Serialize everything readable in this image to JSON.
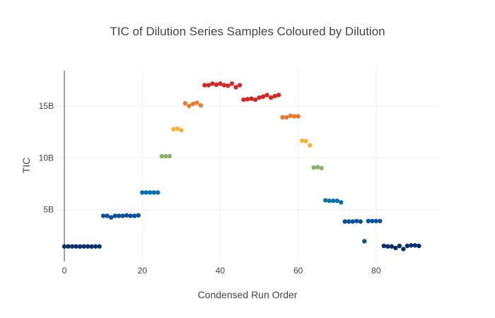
{
  "chart_data": {
    "type": "scatter",
    "title": "TIC of Dilution Series Samples Coloured by Dilution",
    "xlabel": "Condensed Run Order",
    "ylabel": "TIC",
    "xlim": [
      -2,
      96
    ],
    "ylim": [
      0,
      18400000000
    ],
    "x_ticks": [
      0,
      20,
      40,
      60,
      80
    ],
    "x_tick_labels": [
      "0",
      "20",
      "40",
      "60",
      "80"
    ],
    "y_ticks": [
      5000000000,
      10000000000,
      15000000000
    ],
    "y_tick_labels": [
      "5B",
      "10B",
      "15B"
    ],
    "grid": true,
    "legend": "none",
    "colors": {
      "navy": "#08306b",
      "darkblue": "#08519c",
      "blue": "#0570b0",
      "green": "#8fb26a",
      "yellow": "#f6b53a",
      "orange": "#ea7a32",
      "red": "#d62728"
    },
    "points": [
      {
        "x": 0,
        "y": 1450000000,
        "c": "navy"
      },
      {
        "x": 1,
        "y": 1450000000,
        "c": "navy"
      },
      {
        "x": 2,
        "y": 1450000000,
        "c": "navy"
      },
      {
        "x": 3,
        "y": 1450000000,
        "c": "navy"
      },
      {
        "x": 4,
        "y": 1440000000,
        "c": "navy"
      },
      {
        "x": 5,
        "y": 1450000000,
        "c": "navy"
      },
      {
        "x": 6,
        "y": 1450000000,
        "c": "navy"
      },
      {
        "x": 7,
        "y": 1440000000,
        "c": "navy"
      },
      {
        "x": 8,
        "y": 1450000000,
        "c": "navy"
      },
      {
        "x": 9,
        "y": 1450000000,
        "c": "navy"
      },
      {
        "x": 10,
        "y": 4400000000,
        "c": "darkblue"
      },
      {
        "x": 11,
        "y": 4400000000,
        "c": "darkblue"
      },
      {
        "x": 12,
        "y": 4250000000,
        "c": "darkblue"
      },
      {
        "x": 13,
        "y": 4400000000,
        "c": "darkblue"
      },
      {
        "x": 14,
        "y": 4400000000,
        "c": "darkblue"
      },
      {
        "x": 15,
        "y": 4400000000,
        "c": "darkblue"
      },
      {
        "x": 16,
        "y": 4450000000,
        "c": "darkblue"
      },
      {
        "x": 17,
        "y": 4400000000,
        "c": "darkblue"
      },
      {
        "x": 18,
        "y": 4400000000,
        "c": "darkblue"
      },
      {
        "x": 19,
        "y": 4450000000,
        "c": "darkblue"
      },
      {
        "x": 20,
        "y": 6650000000,
        "c": "blue"
      },
      {
        "x": 21,
        "y": 6650000000,
        "c": "blue"
      },
      {
        "x": 22,
        "y": 6650000000,
        "c": "blue"
      },
      {
        "x": 23,
        "y": 6650000000,
        "c": "blue"
      },
      {
        "x": 24,
        "y": 6650000000,
        "c": "blue"
      },
      {
        "x": 25,
        "y": 10150000000,
        "c": "green"
      },
      {
        "x": 26,
        "y": 10150000000,
        "c": "green"
      },
      {
        "x": 27,
        "y": 10150000000,
        "c": "green"
      },
      {
        "x": 28,
        "y": 12750000000,
        "c": "yellow"
      },
      {
        "x": 29,
        "y": 12800000000,
        "c": "yellow"
      },
      {
        "x": 30,
        "y": 12650000000,
        "c": "yellow"
      },
      {
        "x": 31,
        "y": 15250000000,
        "c": "orange"
      },
      {
        "x": 32,
        "y": 15000000000,
        "c": "orange"
      },
      {
        "x": 33,
        "y": 15200000000,
        "c": "orange"
      },
      {
        "x": 34,
        "y": 15300000000,
        "c": "orange"
      },
      {
        "x": 35,
        "y": 15050000000,
        "c": "orange"
      },
      {
        "x": 36,
        "y": 17000000000,
        "c": "red"
      },
      {
        "x": 37,
        "y": 17000000000,
        "c": "red"
      },
      {
        "x": 38,
        "y": 17150000000,
        "c": "red"
      },
      {
        "x": 39,
        "y": 17050000000,
        "c": "red"
      },
      {
        "x": 40,
        "y": 17150000000,
        "c": "red"
      },
      {
        "x": 41,
        "y": 17000000000,
        "c": "red"
      },
      {
        "x": 42,
        "y": 16950000000,
        "c": "red"
      },
      {
        "x": 43,
        "y": 17150000000,
        "c": "red"
      },
      {
        "x": 44,
        "y": 16800000000,
        "c": "red"
      },
      {
        "x": 45,
        "y": 17000000000,
        "c": "red"
      },
      {
        "x": 46,
        "y": 15600000000,
        "c": "red"
      },
      {
        "x": 47,
        "y": 15650000000,
        "c": "red"
      },
      {
        "x": 48,
        "y": 15700000000,
        "c": "red"
      },
      {
        "x": 49,
        "y": 15600000000,
        "c": "red"
      },
      {
        "x": 50,
        "y": 15800000000,
        "c": "red"
      },
      {
        "x": 51,
        "y": 15900000000,
        "c": "red"
      },
      {
        "x": 52,
        "y": 16050000000,
        "c": "red"
      },
      {
        "x": 53,
        "y": 15800000000,
        "c": "red"
      },
      {
        "x": 54,
        "y": 15950000000,
        "c": "red"
      },
      {
        "x": 55,
        "y": 16050000000,
        "c": "red"
      },
      {
        "x": 56,
        "y": 13900000000,
        "c": "orange"
      },
      {
        "x": 57,
        "y": 13900000000,
        "c": "orange"
      },
      {
        "x": 58,
        "y": 14050000000,
        "c": "orange"
      },
      {
        "x": 59,
        "y": 14000000000,
        "c": "orange"
      },
      {
        "x": 60,
        "y": 14000000000,
        "c": "orange"
      },
      {
        "x": 61,
        "y": 11650000000,
        "c": "yellow"
      },
      {
        "x": 62,
        "y": 11600000000,
        "c": "yellow"
      },
      {
        "x": 63,
        "y": 11200000000,
        "c": "yellow"
      },
      {
        "x": 64,
        "y": 9050000000,
        "c": "green"
      },
      {
        "x": 65,
        "y": 9100000000,
        "c": "green"
      },
      {
        "x": 66,
        "y": 9000000000,
        "c": "green"
      },
      {
        "x": 67,
        "y": 5900000000,
        "c": "blue"
      },
      {
        "x": 68,
        "y": 5850000000,
        "c": "blue"
      },
      {
        "x": 69,
        "y": 5850000000,
        "c": "blue"
      },
      {
        "x": 70,
        "y": 5850000000,
        "c": "blue"
      },
      {
        "x": 71,
        "y": 5700000000,
        "c": "blue"
      },
      {
        "x": 72,
        "y": 3850000000,
        "c": "darkblue"
      },
      {
        "x": 73,
        "y": 3850000000,
        "c": "darkblue"
      },
      {
        "x": 74,
        "y": 3850000000,
        "c": "darkblue"
      },
      {
        "x": 75,
        "y": 3900000000,
        "c": "darkblue"
      },
      {
        "x": 76,
        "y": 3850000000,
        "c": "darkblue"
      },
      {
        "x": 77,
        "y": 1950000000,
        "c": "darkblue"
      },
      {
        "x": 78,
        "y": 3900000000,
        "c": "darkblue"
      },
      {
        "x": 79,
        "y": 3900000000,
        "c": "darkblue"
      },
      {
        "x": 80,
        "y": 3900000000,
        "c": "darkblue"
      },
      {
        "x": 81,
        "y": 3900000000,
        "c": "darkblue"
      },
      {
        "x": 82,
        "y": 1500000000,
        "c": "navy"
      },
      {
        "x": 83,
        "y": 1450000000,
        "c": "navy"
      },
      {
        "x": 84,
        "y": 1450000000,
        "c": "navy"
      },
      {
        "x": 85,
        "y": 1300000000,
        "c": "navy"
      },
      {
        "x": 86,
        "y": 1500000000,
        "c": "navy"
      },
      {
        "x": 87,
        "y": 1200000000,
        "c": "navy"
      },
      {
        "x": 88,
        "y": 1500000000,
        "c": "navy"
      },
      {
        "x": 89,
        "y": 1550000000,
        "c": "navy"
      },
      {
        "x": 90,
        "y": 1550000000,
        "c": "navy"
      },
      {
        "x": 91,
        "y": 1500000000,
        "c": "navy"
      }
    ]
  }
}
